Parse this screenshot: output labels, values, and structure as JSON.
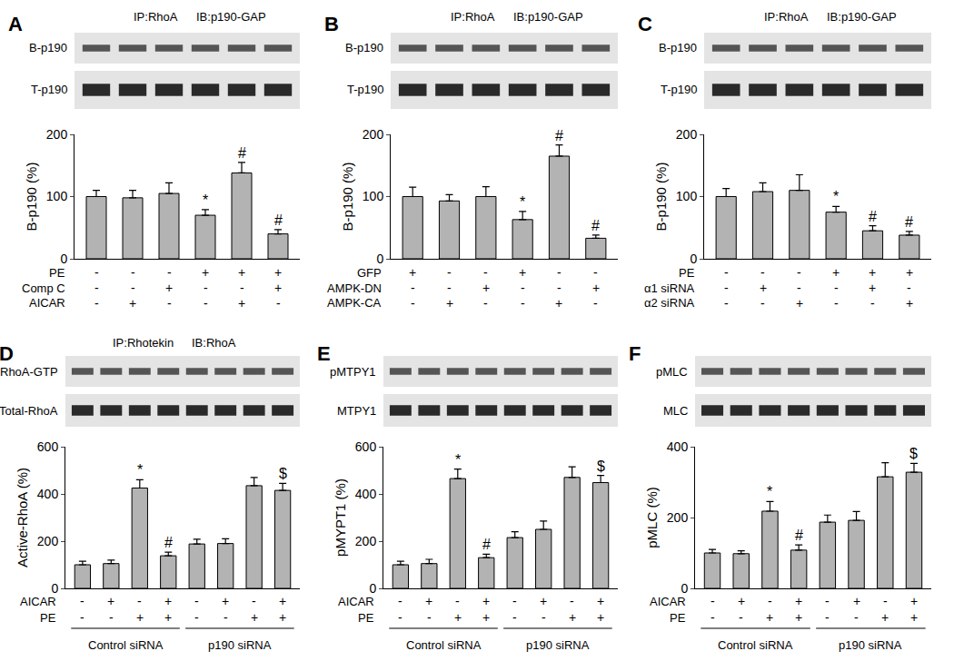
{
  "chart_data": [
    {
      "panel": "A",
      "type": "bar",
      "blot": {
        "title": [
          "IP:RhoA",
          "IB:p190-GAP"
        ],
        "rows": [
          "B-p190",
          "T-p190"
        ]
      },
      "y_label": "B-p190 (%)",
      "categories": [
        null,
        null,
        null,
        null,
        null,
        null
      ],
      "values": [
        100,
        98,
        105,
        70,
        138,
        40
      ],
      "errors": [
        10,
        12,
        17,
        9,
        17,
        7
      ],
      "annotations": [
        null,
        null,
        null,
        "*",
        "#",
        "#"
      ],
      "conditions": [
        {
          "label": "PE",
          "signs": [
            "-",
            "-",
            "-",
            "+",
            "+",
            "+"
          ]
        },
        {
          "label": "Comp C",
          "signs": [
            "-",
            "-",
            "+",
            "-",
            "-",
            "+"
          ]
        },
        {
          "label": "AICAR",
          "signs": [
            "-",
            "+",
            "-",
            "-",
            "+",
            "-"
          ]
        }
      ],
      "ylim": [
        0,
        200
      ],
      "yticks": [
        0,
        100,
        200
      ],
      "color": "#b3b3b3",
      "tick_labels": "y"
    },
    {
      "panel": "B",
      "type": "bar",
      "blot": {
        "title": [
          "IP:RhoA",
          "IB:p190-GAP"
        ],
        "rows": [
          "B-p190",
          "T-p190"
        ]
      },
      "y_label": "B-p190 (%)",
      "categories": [
        null,
        null,
        null,
        null,
        null,
        null
      ],
      "values": [
        100,
        93,
        100,
        63,
        165,
        33
      ],
      "errors": [
        15,
        10,
        16,
        13,
        18,
        5
      ],
      "annotations": [
        null,
        null,
        null,
        "*",
        "#",
        "#"
      ],
      "conditions": [
        {
          "label": "GFP",
          "signs": [
            "+",
            "-",
            "-",
            "+",
            "-",
            "-"
          ]
        },
        {
          "label": "AMPK-DN",
          "signs": [
            "-",
            "-",
            "+",
            "-",
            "-",
            "+"
          ]
        },
        {
          "label": "AMPK-CA",
          "signs": [
            "-",
            "+",
            "-",
            "-",
            "+",
            "-"
          ]
        }
      ],
      "ylim": [
        0,
        200
      ],
      "yticks": [
        0,
        100,
        200
      ],
      "color": "#b3b3b3",
      "tick_labels": "y"
    },
    {
      "panel": "C",
      "type": "bar",
      "blot": {
        "title": [
          "IP:RhoA",
          "IB:p190-GAP"
        ],
        "rows": [
          "B-p190",
          "T-p190"
        ]
      },
      "y_label": "B-p190 (%)",
      "categories": [
        null,
        null,
        null,
        null,
        null,
        null
      ],
      "values": [
        100,
        108,
        110,
        75,
        45,
        38
      ],
      "errors": [
        13,
        14,
        25,
        9,
        8,
        6
      ],
      "annotations": [
        null,
        null,
        null,
        "*",
        "#",
        "#"
      ],
      "conditions": [
        {
          "label": "PE",
          "signs": [
            "-",
            "-",
            "-",
            "+",
            "+",
            "+"
          ]
        },
        {
          "label": "α1 siRNA",
          "signs": [
            "-",
            "+",
            "-",
            "-",
            "+",
            "-"
          ]
        },
        {
          "label": "α2 siRNA",
          "signs": [
            "-",
            "-",
            "+",
            "-",
            "-",
            "+"
          ]
        }
      ],
      "ylim": [
        0,
        200
      ],
      "yticks": [
        0,
        100,
        200
      ],
      "color": "#b3b3b3",
      "tick_labels": "y"
    },
    {
      "panel": "D",
      "type": "bar",
      "blot": {
        "title": [
          "IP:Rhotekin",
          "IB:RhoA"
        ],
        "rows": [
          "RhoA-GTP",
          "Total-RhoA"
        ]
      },
      "y_label": "Active-RhoA (%)",
      "categories": [
        null,
        null,
        null,
        null,
        null,
        null,
        null,
        null
      ],
      "values": [
        100,
        105,
        425,
        138,
        188,
        190,
        435,
        415
      ],
      "errors": [
        15,
        15,
        35,
        15,
        20,
        20,
        35,
        30
      ],
      "annotations": [
        null,
        null,
        "*",
        "#",
        null,
        null,
        null,
        "$"
      ],
      "conditions": [
        {
          "label": "AICAR",
          "signs": [
            "-",
            "+",
            "-",
            "+",
            "-",
            "+",
            "-",
            "+"
          ]
        },
        {
          "label": "PE",
          "signs": [
            "-",
            "-",
            "+",
            "+",
            "-",
            "-",
            "+",
            "+"
          ]
        }
      ],
      "groups": [
        {
          "label": "Control siRNA",
          "start": 0,
          "end": 3
        },
        {
          "label": "p190 siRNA",
          "start": 4,
          "end": 7
        }
      ],
      "ylim": [
        0,
        600
      ],
      "yticks": [
        0,
        200,
        400,
        600
      ],
      "color": "#b3b3b3",
      "tick_labels": "y"
    },
    {
      "panel": "E",
      "type": "bar",
      "blot": {
        "rows": [
          "pMTPY1",
          "MTPY1"
        ]
      },
      "y_label": "pMYPT1 (%)",
      "categories": [
        null,
        null,
        null,
        null,
        null,
        null,
        null,
        null
      ],
      "values": [
        100,
        105,
        465,
        130,
        215,
        250,
        470,
        448
      ],
      "errors": [
        15,
        18,
        40,
        15,
        25,
        35,
        45,
        30
      ],
      "annotations": [
        null,
        null,
        "*",
        "#",
        null,
        null,
        null,
        "$"
      ],
      "conditions": [
        {
          "label": "AICAR",
          "signs": [
            "-",
            "+",
            "-",
            "+",
            "-",
            "+",
            "-",
            "+"
          ]
        },
        {
          "label": "PE",
          "signs": [
            "-",
            "-",
            "+",
            "+",
            "-",
            "-",
            "+",
            "+"
          ]
        }
      ],
      "groups": [
        {
          "label": "Control siRNA",
          "start": 0,
          "end": 3
        },
        {
          "label": "p190 siRNA",
          "start": 4,
          "end": 7
        }
      ],
      "ylim": [
        0,
        600
      ],
      "yticks": [
        0,
        200,
        400,
        600
      ],
      "color": "#b3b3b3",
      "tick_labels": "y"
    },
    {
      "panel": "F",
      "type": "bar",
      "blot": {
        "rows": [
          "pMLC",
          "MLC"
        ]
      },
      "y_label": "pMLC (%)",
      "categories": [
        null,
        null,
        null,
        null,
        null,
        null,
        null,
        null
      ],
      "values": [
        100,
        98,
        218,
        108,
        187,
        192,
        315,
        328
      ],
      "errors": [
        10,
        8,
        27,
        15,
        20,
        25,
        40,
        25
      ],
      "annotations": [
        null,
        null,
        "*",
        "#",
        null,
        null,
        null,
        "$"
      ],
      "conditions": [
        {
          "label": "AICAR",
          "signs": [
            "-",
            "+",
            "-",
            "+",
            "-",
            "+",
            "-",
            "+"
          ]
        },
        {
          "label": "PE",
          "signs": [
            "-",
            "-",
            "+",
            "+",
            "-",
            "-",
            "+",
            "+"
          ]
        }
      ],
      "groups": [
        {
          "label": "Control siRNA",
          "start": 0,
          "end": 3
        },
        {
          "label": "p190 siRNA",
          "start": 4,
          "end": 7
        }
      ],
      "ylim": [
        0,
        400
      ],
      "yticks": [
        0,
        200,
        400
      ],
      "color": "#b3b3b3",
      "tick_labels": "y"
    }
  ]
}
